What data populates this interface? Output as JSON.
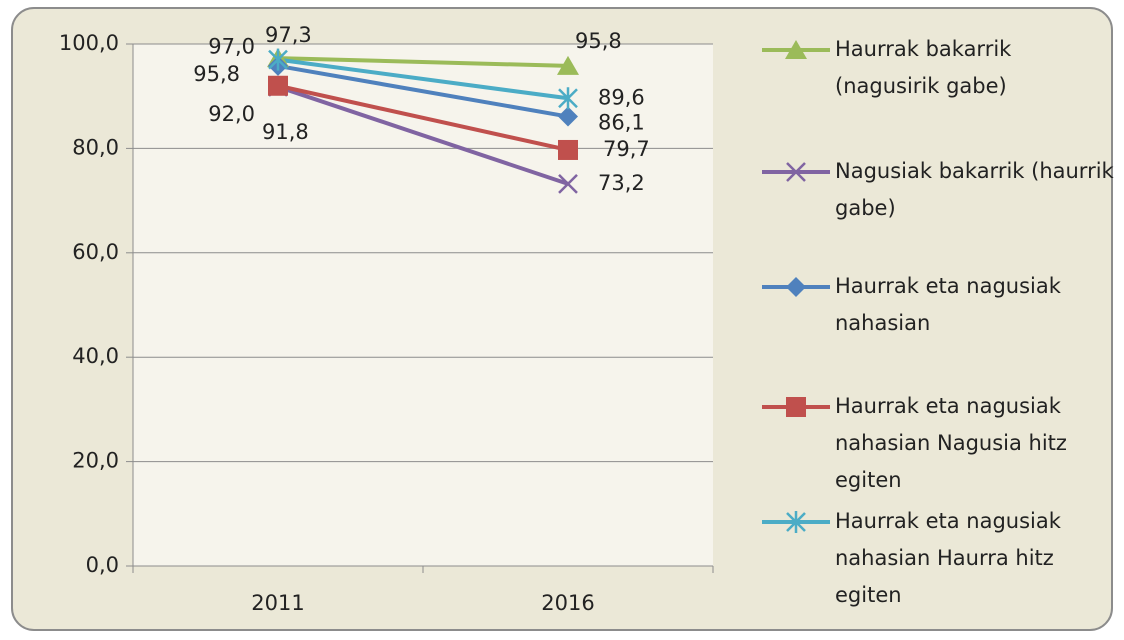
{
  "chart_data": {
    "type": "line",
    "categories": [
      "2011",
      "2016"
    ],
    "series": [
      {
        "name": "Haurrak bakarrik (nagusirik gabe)",
        "color": "#9bbb59",
        "marker": "triangle",
        "values": [
          97.3,
          95.8
        ],
        "value_labels": [
          "97,3",
          "95,8"
        ]
      },
      {
        "name": "Nagusiak bakarrik (haurrik gabe)",
        "color": "#8064a2",
        "marker": "x",
        "values": [
          91.8,
          73.2
        ],
        "value_labels": [
          "91,8",
          "73,2"
        ]
      },
      {
        "name": "Haurrak eta nagusiak nahasian",
        "color": "#4f81bd",
        "marker": "diamond",
        "values": [
          95.8,
          86.1
        ],
        "value_labels": [
          "95,8",
          "86,1"
        ]
      },
      {
        "name": "Haurrak eta nagusiak nahasian Nagusia hitz egiten",
        "color": "#c0504d",
        "marker": "square",
        "values": [
          92.0,
          79.7
        ],
        "value_labels": [
          "92,0",
          "79,7"
        ]
      },
      {
        "name": "Haurrak eta nagusiak nahasian Haurra hitz egiten",
        "color": "#4bacc6",
        "marker": "star",
        "values": [
          97.0,
          89.6
        ],
        "value_labels": [
          "97,0",
          "89,6"
        ]
      }
    ],
    "ylim": [
      0,
      100
    ],
    "yticks": [
      {
        "value": 0,
        "label": "0,0"
      },
      {
        "value": 20,
        "label": "20,0"
      },
      {
        "value": 40,
        "label": "40,0"
      },
      {
        "value": 60,
        "label": "60,0"
      },
      {
        "value": 80,
        "label": "80,0"
      },
      {
        "value": 100,
        "label": "100,0"
      }
    ],
    "grid": true,
    "legend": "right"
  }
}
